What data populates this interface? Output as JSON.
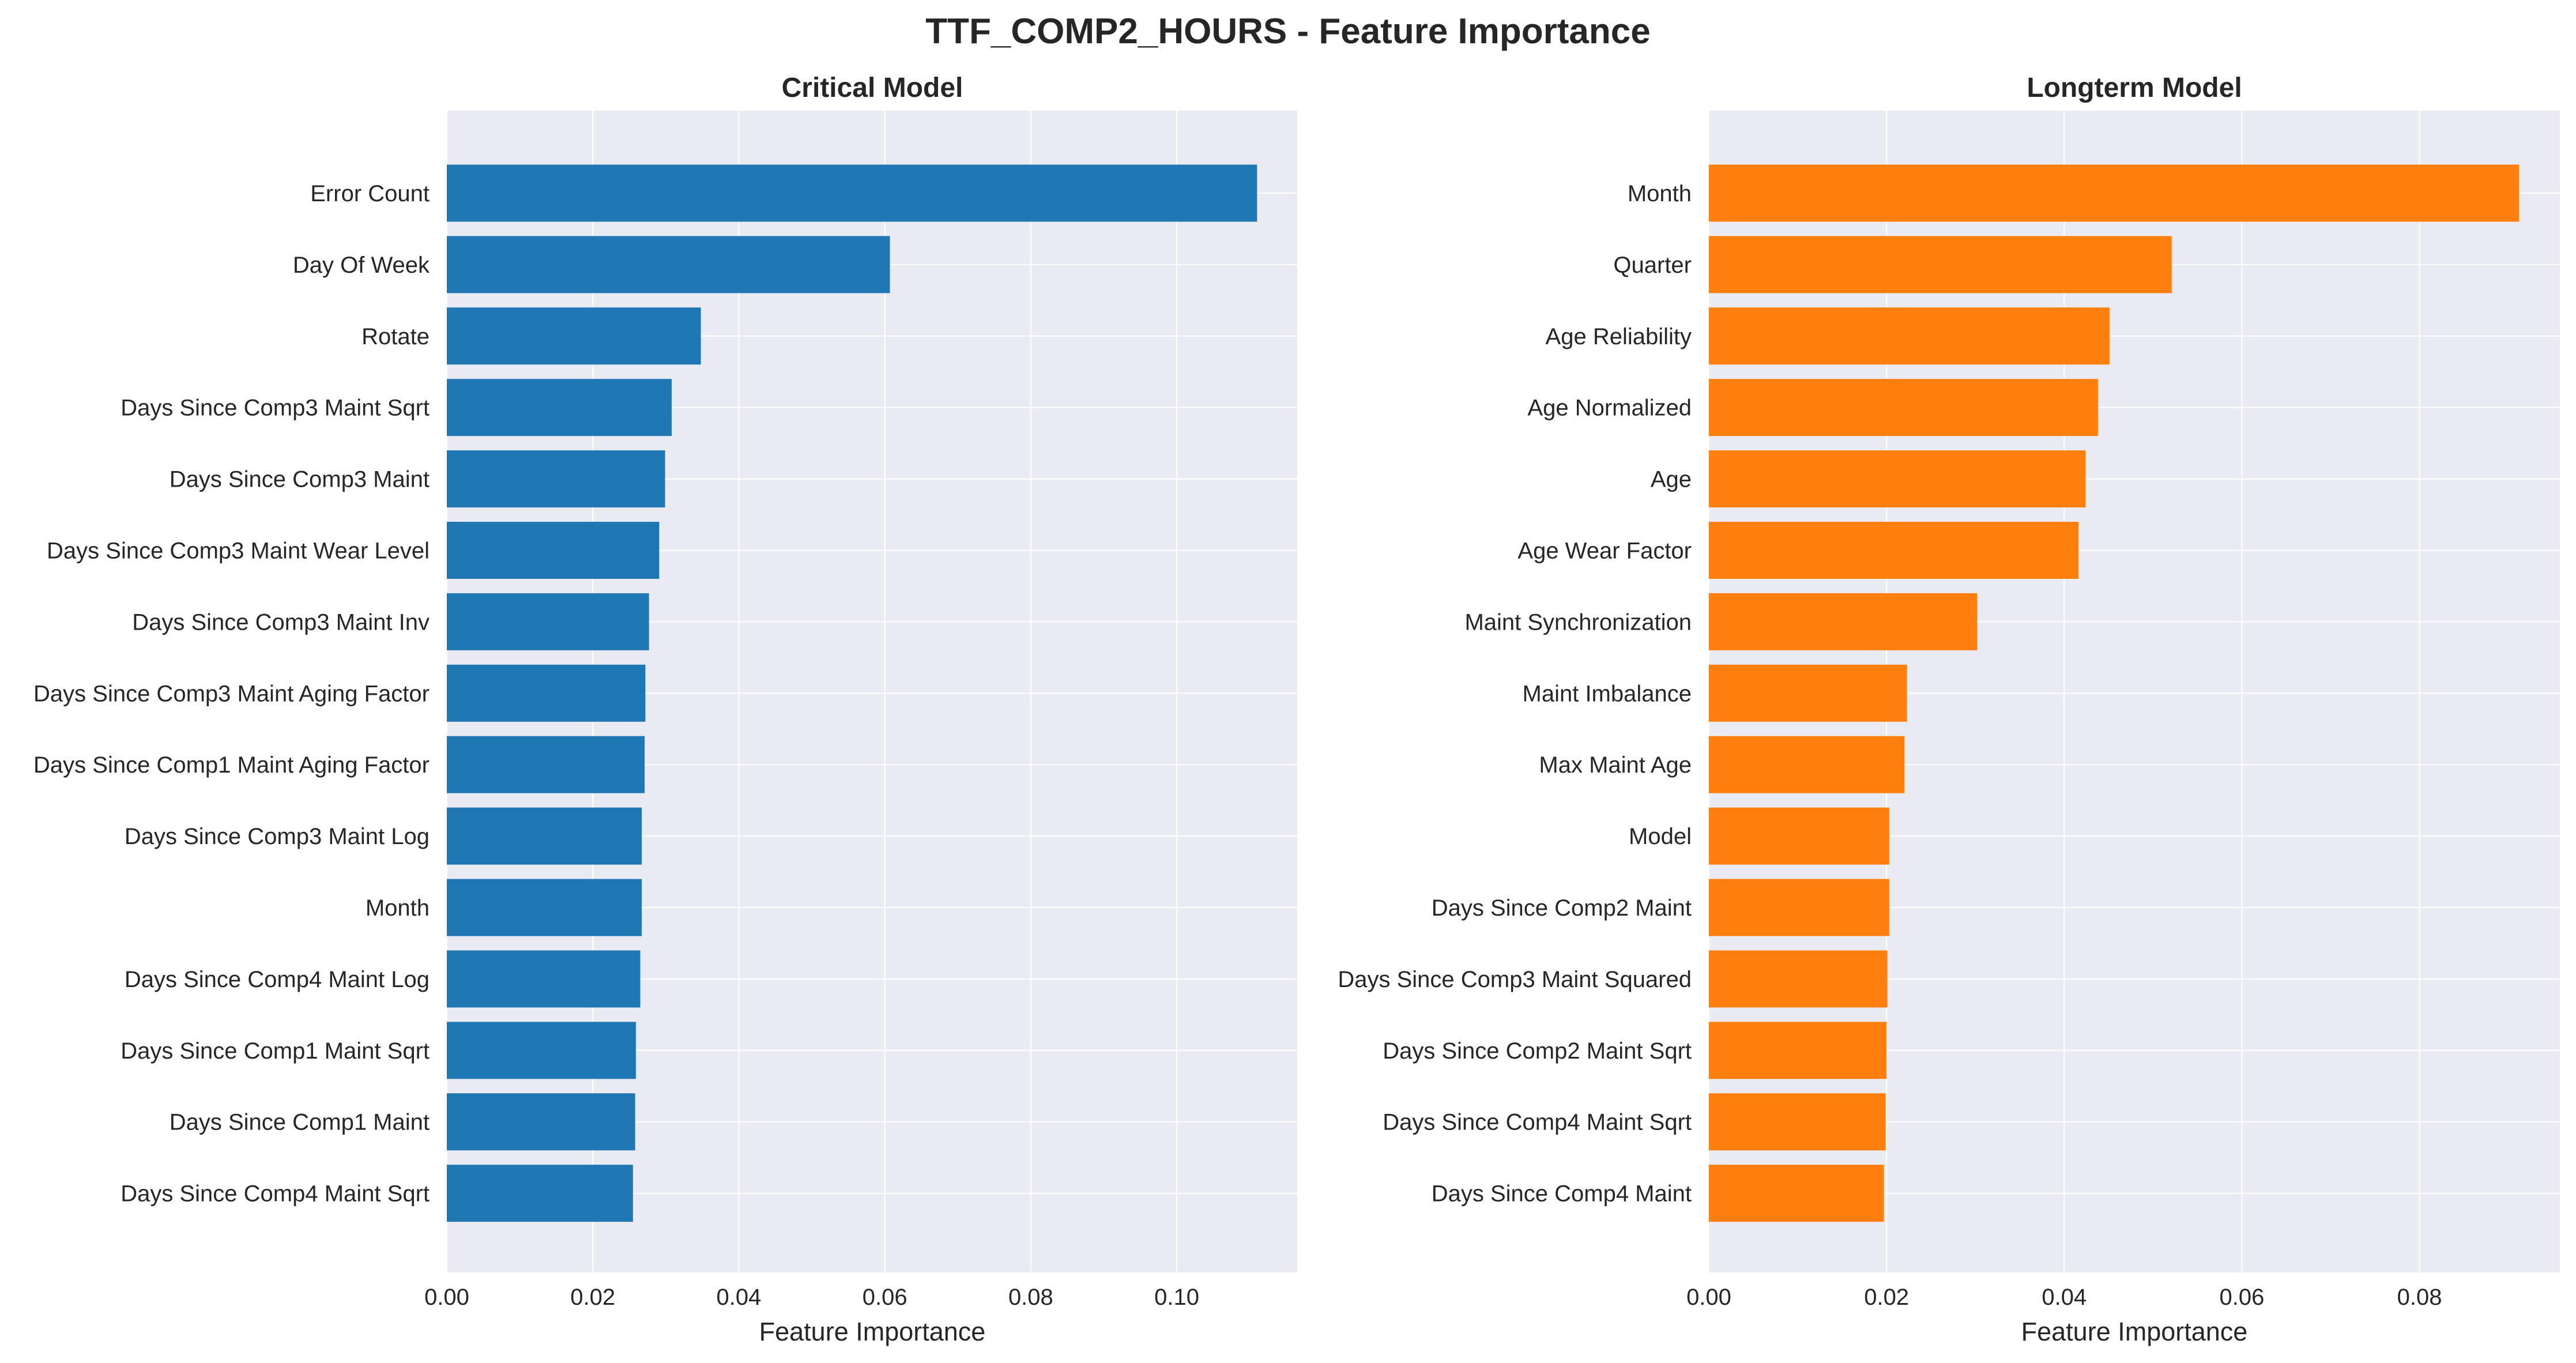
{
  "figure": {
    "suptitle": "TTF_COMP2_HOURS - Feature Importance"
  },
  "chart_data": [
    {
      "type": "bar",
      "orientation": "horizontal",
      "title": "Critical Model",
      "xlabel": "Feature Importance",
      "ylabel": "",
      "xlim": [
        0,
        0.1165
      ],
      "xticks": [
        0.0,
        0.02,
        0.04,
        0.06,
        0.08,
        0.1
      ],
      "xtick_labels": [
        "0.00",
        "0.02",
        "0.04",
        "0.06",
        "0.08",
        "0.10"
      ],
      "grid": true,
      "bar_color": "#1f77b4",
      "categories": [
        "Error Count",
        "Day Of Week",
        "Rotate",
        "Days Since Comp3 Maint Sqrt",
        "Days Since Comp3 Maint",
        "Days Since Comp3 Maint Wear Level",
        "Days Since Comp3 Maint Inv",
        "Days Since Comp3 Maint Aging Factor",
        "Days Since Comp1 Maint Aging Factor",
        "Days Since Comp3 Maint Log",
        "Month",
        "Days Since Comp4 Maint Log",
        "Days Since Comp1 Maint Sqrt",
        "Days Since Comp1 Maint",
        "Days Since Comp4 Maint Sqrt"
      ],
      "values": [
        0.111,
        0.0607,
        0.0348,
        0.0308,
        0.0299,
        0.0291,
        0.0277,
        0.0272,
        0.0271,
        0.0267,
        0.0267,
        0.0265,
        0.0259,
        0.0258,
        0.0255
      ]
    },
    {
      "type": "bar",
      "orientation": "horizontal",
      "title": "Longterm Model",
      "xlabel": "Feature Importance",
      "ylabel": "",
      "xlim": [
        0,
        0.0958
      ],
      "xticks": [
        0.0,
        0.02,
        0.04,
        0.06,
        0.08
      ],
      "xtick_labels": [
        "0.00",
        "0.02",
        "0.04",
        "0.06",
        "0.08"
      ],
      "grid": true,
      "bar_color": "#ff7f0e",
      "categories": [
        "Month",
        "Quarter",
        "Age Reliability",
        "Age Normalized",
        "Age",
        "Age Wear Factor",
        "Maint Synchronization",
        "Maint Imbalance",
        "Max Maint Age",
        "Model",
        "Days Since Comp2 Maint",
        "Days Since Comp3 Maint Squared",
        "Days Since Comp2 Maint Sqrt",
        "Days Since Comp4 Maint Sqrt",
        "Days Since Comp4 Maint"
      ],
      "values": [
        0.0912,
        0.0521,
        0.0451,
        0.0438,
        0.0424,
        0.0416,
        0.0302,
        0.0223,
        0.022,
        0.0203,
        0.0203,
        0.0201,
        0.02,
        0.0199,
        0.0197
      ]
    }
  ]
}
